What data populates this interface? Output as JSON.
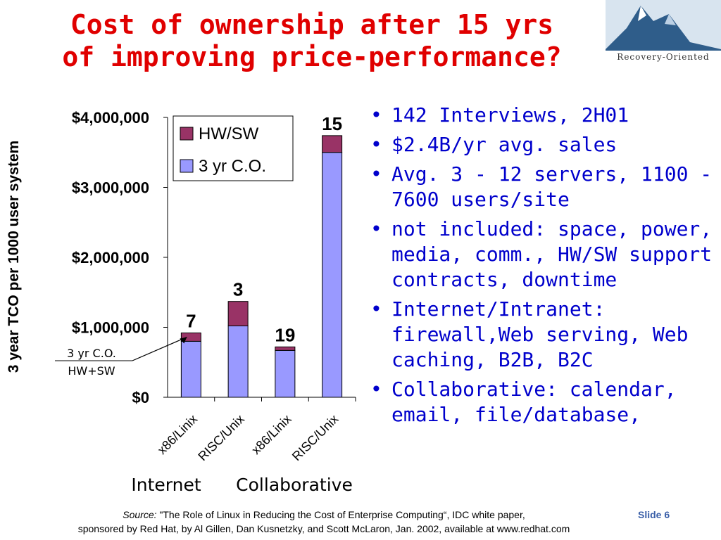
{
  "slide": {
    "title_line1": "Cost of ownership after 15 yrs",
    "title_line2": "of improving price-performance?",
    "logo_text": "Recovery-Oriented",
    "slide_label": "Slide 6",
    "colors": {
      "title": "#e00000",
      "bullets": "#0000cc"
    }
  },
  "bullets": [
    "142 Interviews, 2H01",
    "$2.4B/yr avg. sales",
    "Avg. 3 - 12 servers, 1100 - 7600 users/site",
    "not included: space, power, media, comm., HW/SW support contracts, downtime",
    "Internet/Intranet: firewall,Web serving, Web caching, B2B, B2C",
    "Collaborative: calendar, email, file/database,"
  ],
  "footer": {
    "source_label": "Source:",
    "line1": " \"The Role of Linux in Reducing the Cost of Enterprise Computing“, IDC white paper,",
    "line2": "sponsored by Red Hat, by Al Gillen, Dan Kusnetzky, and Scott McLaron, Jan. 2002, available at www.redhat.com"
  },
  "chart_data": {
    "type": "bar",
    "stacked": true,
    "categories": [
      "x86/Linix",
      "RISC/Unix",
      "x86/Linix",
      "RISC/Unix"
    ],
    "groups": [
      "Internet",
      "Collaborative"
    ],
    "series": [
      {
        "name": "3 yr C.O.",
        "color": "#9999ff",
        "values": [
          800000,
          1020000,
          670000,
          3500000
        ]
      },
      {
        "name": "HW/SW",
        "color": "#993366",
        "values": [
          120000,
          350000,
          50000,
          240000
        ]
      }
    ],
    "data_labels": [
      "7",
      "3",
      "19",
      "15"
    ],
    "ylabel": "3 year TCO per 1000 user system",
    "ylim": [
      0,
      4000000
    ],
    "yticks": [
      "$0",
      "$1,000,000",
      "$2,000,000",
      "$3,000,000",
      "$4,000,000"
    ],
    "legend_position": "top-right",
    "annotation": [
      "3 yr C.O.",
      "HW+SW"
    ]
  }
}
